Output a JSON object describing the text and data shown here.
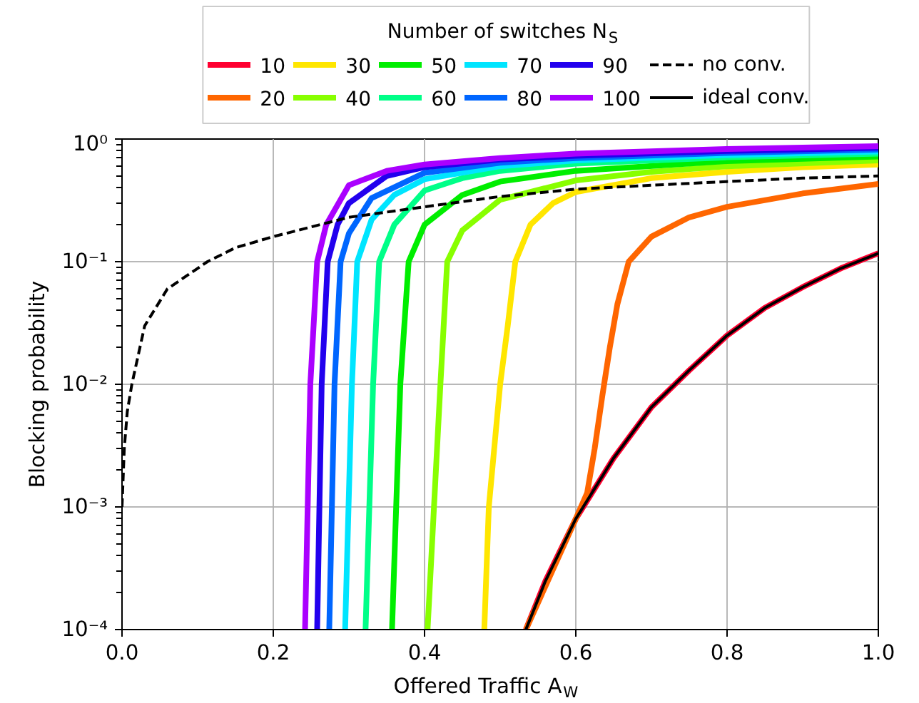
{
  "chart_data": {
    "type": "line",
    "xlabel": "Offered Traffic A$_{W}$",
    "ylabel": "Blocking probability",
    "legend_title": "Number of switches N$_{S}$",
    "legend": "top",
    "grid": true,
    "log": "y",
    "xlim": [
      0,
      1
    ],
    "xticks": [
      {
        "value": 0,
        "label": "0.0"
      },
      0.2,
      0.4,
      0.6,
      0.8,
      {
        "value": 1,
        "label": "1.0"
      }
    ],
    "ylim": [
      0.0001,
      1
    ],
    "yticks": [
      {
        "value": 0.0001,
        "label": "10⁻⁴"
      },
      {
        "value": 0.001,
        "label": "10⁻³"
      },
      {
        "value": 0.01,
        "label": "10⁻²"
      },
      {
        "value": 0.1,
        "label": "10⁻¹"
      },
      {
        "value": 1,
        "label": "10⁰"
      }
    ],
    "series": [
      {
        "name": "10",
        "color": "#ff0030",
        "x": [
          0.534,
          0.56,
          0.6,
          0.65,
          0.7,
          0.75,
          0.8,
          0.85,
          0.9,
          0.95,
          1.0
        ],
        "values": [
          0.0001,
          0.00025,
          0.0008,
          0.0025,
          0.0065,
          0.013,
          0.025,
          0.042,
          0.062,
          0.088,
          0.117
        ]
      },
      {
        "name": "20",
        "color": "#ff6600",
        "x": [
          0.534,
          0.6,
          0.615,
          0.625,
          0.635,
          0.645,
          0.655,
          0.67,
          0.7,
          0.75,
          0.8,
          0.9,
          1.0
        ],
        "values": [
          0.0001,
          0.0008,
          0.0013,
          0.003,
          0.008,
          0.02,
          0.045,
          0.1,
          0.16,
          0.23,
          0.28,
          0.36,
          0.43
        ]
      },
      {
        "name": "30",
        "color": "#ffe600",
        "x": [
          0.479,
          0.485,
          0.5,
          0.51,
          0.52,
          0.54,
          0.57,
          0.6,
          0.7,
          0.8,
          0.9,
          1.0
        ],
        "values": [
          0.0001,
          0.001,
          0.01,
          0.03,
          0.1,
          0.2,
          0.3,
          0.37,
          0.48,
          0.54,
          0.59,
          0.62
        ]
      },
      {
        "name": "40",
        "color": "#88ff00",
        "x": [
          0.404,
          0.421,
          0.43,
          0.45,
          0.5,
          0.6,
          0.7,
          0.8,
          1.0
        ],
        "values": [
          0.0001,
          0.01,
          0.1,
          0.18,
          0.32,
          0.46,
          0.54,
          0.6,
          0.67
        ]
      },
      {
        "name": "50",
        "color": "#00ee00",
        "x": [
          0.357,
          0.368,
          0.379,
          0.4,
          0.45,
          0.5,
          0.6,
          0.8,
          1.0
        ],
        "values": [
          0.0001,
          0.01,
          0.1,
          0.2,
          0.35,
          0.45,
          0.55,
          0.66,
          0.72
        ]
      },
      {
        "name": "60",
        "color": "#00ff88",
        "x": [
          0.322,
          0.332,
          0.34,
          0.36,
          0.4,
          0.45,
          0.5,
          0.6,
          0.8,
          1.0
        ],
        "values": [
          0.0001,
          0.01,
          0.1,
          0.2,
          0.38,
          0.48,
          0.55,
          0.63,
          0.71,
          0.76
        ]
      },
      {
        "name": "70",
        "color": "#00e5ff",
        "x": [
          0.295,
          0.304,
          0.311,
          0.33,
          0.36,
          0.4,
          0.5,
          0.6,
          0.8,
          1.0
        ],
        "values": [
          0.0001,
          0.01,
          0.1,
          0.22,
          0.35,
          0.47,
          0.6,
          0.67,
          0.74,
          0.79
        ]
      },
      {
        "name": "80",
        "color": "#0066ff",
        "x": [
          0.274,
          0.281,
          0.289,
          0.3,
          0.33,
          0.4,
          0.5,
          0.6,
          0.8,
          1.0
        ],
        "values": [
          0.0001,
          0.01,
          0.1,
          0.17,
          0.33,
          0.53,
          0.64,
          0.7,
          0.77,
          0.82
        ]
      },
      {
        "name": "90",
        "color": "#2200ee",
        "x": [
          0.258,
          0.264,
          0.272,
          0.285,
          0.3,
          0.35,
          0.4,
          0.5,
          0.6,
          0.8,
          1.0
        ],
        "values": [
          0.0001,
          0.01,
          0.1,
          0.2,
          0.3,
          0.5,
          0.59,
          0.68,
          0.73,
          0.8,
          0.85
        ]
      },
      {
        "name": "100",
        "color": "#aa00ff",
        "x": [
          0.242,
          0.249,
          0.258,
          0.27,
          0.3,
          0.35,
          0.4,
          0.5,
          0.6,
          0.8,
          1.0
        ],
        "values": [
          0.0001,
          0.01,
          0.1,
          0.2,
          0.42,
          0.55,
          0.62,
          0.7,
          0.76,
          0.83,
          0.875
        ]
      },
      {
        "name": "no conv.",
        "color": "#000000",
        "line_style": "dashed",
        "x": [
          0,
          0.003,
          0.007,
          0.013,
          0.03,
          0.06,
          0.113,
          0.15,
          0.2,
          0.3,
          0.4,
          0.5,
          0.6,
          0.7,
          0.8,
          0.9,
          1.0
        ],
        "values": [
          0.001,
          0.003,
          0.006,
          0.01,
          0.03,
          0.06,
          0.1,
          0.13,
          0.16,
          0.23,
          0.28,
          0.34,
          0.39,
          0.42,
          0.45,
          0.48,
          0.5
        ]
      },
      {
        "name": "ideal conv.",
        "color": "#000000",
        "x": [
          0.534,
          0.56,
          0.6,
          0.65,
          0.7,
          0.75,
          0.8,
          0.85,
          0.9,
          0.95,
          1.0
        ],
        "values": [
          0.0001,
          0.00025,
          0.0008,
          0.0025,
          0.0065,
          0.013,
          0.025,
          0.042,
          0.062,
          0.088,
          0.117
        ]
      }
    ]
  }
}
